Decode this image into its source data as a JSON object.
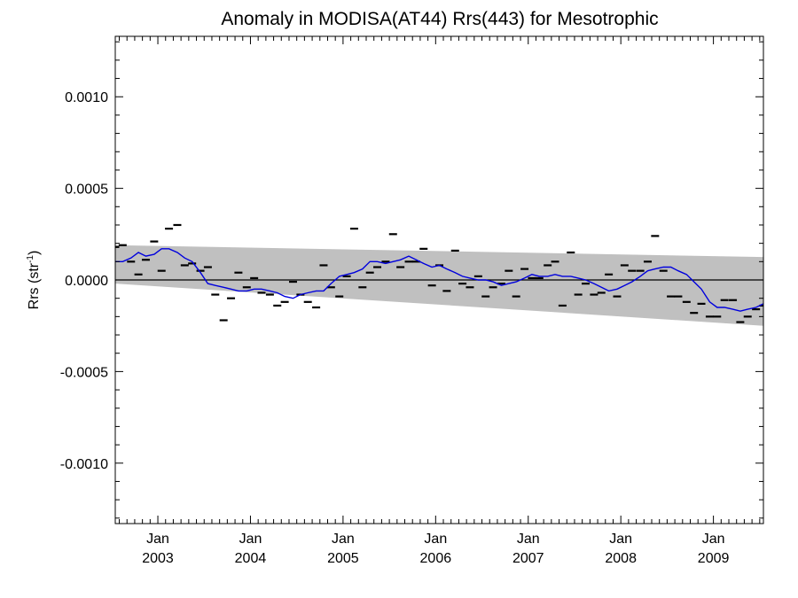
{
  "chart_data": {
    "type": "scatter",
    "title": "Anomaly in MODISA(AT44) Rrs(443) for Mesotrophic",
    "xlabel": "",
    "ylabel": {
      "main": "Rrs (str",
      "sup": "-1",
      "tail": ")"
    },
    "xlim": [
      2002.54,
      2009.54
    ],
    "ylim": [
      -0.00133,
      0.00133
    ],
    "y_ticks": [
      {
        "value": 0.001,
        "label": "0.0010"
      },
      {
        "value": 0.0005,
        "label": "0.0005"
      },
      {
        "value": 0.0,
        "label": "0.0000"
      },
      {
        "value": -0.0005,
        "label": "-0.0005"
      },
      {
        "value": -0.001,
        "label": "-0.0010"
      }
    ],
    "x_ticks": [
      {
        "value": 2003.0,
        "month": "Jan",
        "year": "2003"
      },
      {
        "value": 2004.0,
        "month": "Jan",
        "year": "2004"
      },
      {
        "value": 2005.0,
        "month": "Jan",
        "year": "2005"
      },
      {
        "value": 2006.0,
        "month": "Jan",
        "year": "2006"
      },
      {
        "value": 2007.0,
        "month": "Jan",
        "year": "2007"
      },
      {
        "value": 2008.0,
        "month": "Jan",
        "year": "2008"
      },
      {
        "value": 2009.0,
        "month": "Jan",
        "year": "2009"
      }
    ],
    "zero_line": 0.0,
    "band": {
      "upper": [
        [
          2002.54,
          0.00019
        ],
        [
          2009.54,
          0.000125
        ]
      ],
      "lower": [
        [
          2002.54,
          -2e-05
        ],
        [
          2009.54,
          -0.00025
        ]
      ],
      "color": "#c0c0c0"
    },
    "monthly_points": {
      "x": [
        2002.54,
        2002.62,
        2002.71,
        2002.79,
        2002.87,
        2002.96,
        2003.04,
        2003.12,
        2003.21,
        2003.29,
        2003.37,
        2003.46,
        2003.54,
        2003.62,
        2003.71,
        2003.79,
        2003.87,
        2003.96,
        2004.04,
        2004.12,
        2004.21,
        2004.29,
        2004.37,
        2004.46,
        2004.54,
        2004.62,
        2004.71,
        2004.79,
        2004.87,
        2004.96,
        2005.04,
        2005.12,
        2005.21,
        2005.29,
        2005.37,
        2005.46,
        2005.54,
        2005.62,
        2005.71,
        2005.79,
        2005.87,
        2005.96,
        2006.04,
        2006.12,
        2006.21,
        2006.29,
        2006.37,
        2006.46,
        2006.54,
        2006.62,
        2006.71,
        2006.79,
        2006.87,
        2006.96,
        2007.04,
        2007.12,
        2007.21,
        2007.29,
        2007.37,
        2007.46,
        2007.54,
        2007.62,
        2007.71,
        2007.79,
        2007.87,
        2007.96,
        2008.04,
        2008.12,
        2008.21,
        2008.29,
        2008.37,
        2008.46,
        2008.54,
        2008.62,
        2008.71,
        2008.79,
        2008.87,
        2008.96,
        2009.04,
        2009.12,
        2009.21,
        2009.29,
        2009.37,
        2009.46,
        2009.54
      ],
      "y": [
        0.00018,
        0.00019,
        0.0001,
        3e-05,
        0.00011,
        0.00021,
        5e-05,
        0.00028,
        0.0003,
        8e-05,
        9e-05,
        5e-05,
        7e-05,
        -8e-05,
        -0.00022,
        -0.0001,
        4e-05,
        -4e-05,
        1e-05,
        -7e-05,
        -8e-05,
        -0.00014,
        -0.00012,
        -1e-05,
        -8e-05,
        -0.00012,
        -0.00015,
        8e-05,
        -4e-05,
        -9e-05,
        2e-05,
        0.00028,
        -4e-05,
        4e-05,
        7e-05,
        0.0001,
        0.00025,
        7e-05,
        0.0001,
        0.0001,
        0.00017,
        -3e-05,
        8e-05,
        -6e-05,
        0.00016,
        -2e-05,
        -4e-05,
        2e-05,
        -9e-05,
        -4e-05,
        -2e-05,
        5e-05,
        -9e-05,
        6e-05,
        1e-05,
        1e-05,
        8e-05,
        0.0001,
        -0.00014,
        0.00015,
        -8e-05,
        -2e-05,
        -8e-05,
        -7e-05,
        3e-05,
        -9e-05,
        8e-05,
        5e-05,
        5e-05,
        0.0001,
        0.00024,
        5e-05,
        -9e-05,
        -9e-05,
        -0.00012,
        -0.00018,
        -0.00013,
        -0.0002,
        -0.0002,
        -0.00011,
        -0.00011,
        -0.00023,
        -0.0002,
        -0.00016,
        -0.00014
      ],
      "color": "#000000"
    },
    "running_mean": {
      "x": [
        2002.54,
        2002.62,
        2002.71,
        2002.79,
        2002.87,
        2002.96,
        2003.04,
        2003.12,
        2003.21,
        2003.29,
        2003.37,
        2003.46,
        2003.54,
        2003.62,
        2003.71,
        2003.79,
        2003.87,
        2003.96,
        2004.04,
        2004.12,
        2004.21,
        2004.29,
        2004.37,
        2004.46,
        2004.54,
        2004.62,
        2004.71,
        2004.79,
        2004.87,
        2004.96,
        2005.04,
        2005.12,
        2005.21,
        2005.29,
        2005.37,
        2005.46,
        2005.54,
        2005.62,
        2005.71,
        2005.79,
        2005.87,
        2005.96,
        2006.04,
        2006.12,
        2006.21,
        2006.29,
        2006.37,
        2006.46,
        2006.54,
        2006.62,
        2006.71,
        2006.79,
        2006.87,
        2006.96,
        2007.04,
        2007.12,
        2007.21,
        2007.29,
        2007.37,
        2007.46,
        2007.54,
        2007.62,
        2007.71,
        2007.79,
        2007.87,
        2007.96,
        2008.04,
        2008.12,
        2008.21,
        2008.29,
        2008.37,
        2008.46,
        2008.54,
        2008.62,
        2008.71,
        2008.79,
        2008.87,
        2008.96,
        2009.04,
        2009.12,
        2009.21,
        2009.29,
        2009.37,
        2009.46,
        2009.54
      ],
      "y": [
        0.0001,
        0.0001,
        0.00012,
        0.00015,
        0.00013,
        0.00014,
        0.00017,
        0.00017,
        0.00015,
        0.00012,
        0.0001,
        4e-05,
        -2e-05,
        -3e-05,
        -4e-05,
        -5e-05,
        -6e-05,
        -6e-05,
        -5e-05,
        -5e-05,
        -6e-05,
        -7e-05,
        -9e-05,
        -0.0001,
        -8e-05,
        -7e-05,
        -6e-05,
        -6e-05,
        -2e-05,
        2e-05,
        3e-05,
        4e-05,
        6e-05,
        0.0001,
        0.0001,
        9e-05,
        0.0001,
        0.00011,
        0.00013,
        0.00011,
        9e-05,
        7e-05,
        8e-05,
        6e-05,
        4e-05,
        2e-05,
        1e-05,
        0.0,
        0.0,
        -1e-05,
        -3e-05,
        -2e-05,
        -1e-05,
        1e-05,
        3e-05,
        2e-05,
        2e-05,
        3e-05,
        2e-05,
        2e-05,
        1e-05,
        0.0,
        -2e-05,
        -4e-05,
        -6e-05,
        -5e-05,
        -3e-05,
        -1e-05,
        2e-05,
        5e-05,
        6e-05,
        7e-05,
        7e-05,
        5e-05,
        3e-05,
        -1e-05,
        -5e-05,
        -0.00012,
        -0.00015,
        -0.00015,
        -0.00016,
        -0.00017,
        -0.00016,
        -0.00015,
        -0.00013
      ],
      "color": "#0000dd"
    },
    "grid": false,
    "legend": "none"
  }
}
